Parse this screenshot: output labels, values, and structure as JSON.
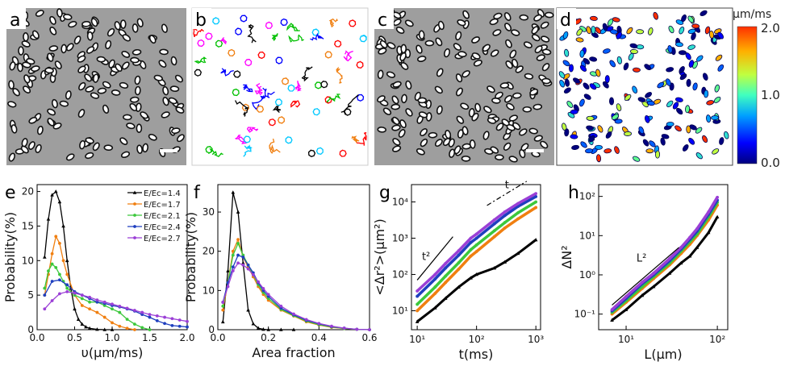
{
  "panel_labels": [
    "a",
    "b",
    "c",
    "d",
    "e",
    "f",
    "g",
    "h"
  ],
  "colorbar": {
    "unit": "μm/ms",
    "ticks": [
      "2.0",
      "1.0",
      "0.0"
    ],
    "range": [
      0,
      2
    ]
  },
  "series_colors": [
    "#000000",
    "#f07f10",
    "#3cc83c",
    "#1f3fbf",
    "#9b3fd6"
  ],
  "chart_data": [
    {
      "panel": "e",
      "type": "line",
      "xlabel": "υ(μm/ms)",
      "ylabel": "Probability(%)",
      "xlim": [
        0,
        2
      ],
      "ylim": [
        0,
        21
      ],
      "xticks": [
        "0.0",
        "0.5",
        "1.0",
        "1.5",
        "2.0"
      ],
      "yticks": [
        "0",
        "5",
        "10",
        "15",
        "20"
      ],
      "legend": "top-right",
      "series": [
        {
          "name": "E/Ec=1.4",
          "x": [
            0.1,
            0.15,
            0.2,
            0.25,
            0.3,
            0.35,
            0.4,
            0.45,
            0.5,
            0.55,
            0.6,
            0.65,
            0.7,
            0.8,
            0.9,
            1.0
          ],
          "values": [
            10.5,
            16,
            19.5,
            20,
            18.5,
            15,
            10,
            6,
            3,
            1.5,
            0.8,
            0.4,
            0.2,
            0.05,
            0,
            0
          ]
        },
        {
          "name": "E/Ec=1.7",
          "x": [
            0.1,
            0.15,
            0.2,
            0.25,
            0.3,
            0.35,
            0.4,
            0.5,
            0.6,
            0.7,
            0.8,
            0.9,
            1.0,
            1.1,
            1.2,
            1.3
          ],
          "values": [
            5,
            8,
            11,
            13.5,
            12.5,
            10,
            8,
            5,
            3.5,
            3,
            2.5,
            1.8,
            1,
            0.5,
            0.2,
            0
          ]
        },
        {
          "name": "E/Ec=2.1",
          "x": [
            0.1,
            0.15,
            0.2,
            0.25,
            0.3,
            0.35,
            0.4,
            0.5,
            0.6,
            0.7,
            0.8,
            0.9,
            1.0,
            1.1,
            1.2,
            1.3,
            1.4,
            1.5
          ],
          "values": [
            6,
            8.5,
            9.5,
            9,
            8,
            7,
            6,
            5,
            4.5,
            4,
            4,
            3.5,
            3,
            2.5,
            1.5,
            0.8,
            0.3,
            0
          ]
        },
        {
          "name": "E/Ec=2.4",
          "x": [
            0.1,
            0.2,
            0.3,
            0.4,
            0.5,
            0.6,
            0.7,
            0.8,
            0.9,
            1.0,
            1.1,
            1.2,
            1.3,
            1.4,
            1.5,
            1.6,
            1.7,
            1.8,
            1.9,
            2.0
          ],
          "values": [
            5,
            7,
            7.2,
            6.5,
            5.5,
            5,
            4.5,
            4,
            3.8,
            3.5,
            3.3,
            3,
            2.7,
            2.2,
            1.8,
            1.3,
            0.9,
            0.6,
            0.5,
            0.4
          ]
        },
        {
          "name": "E/Ec=2.7",
          "x": [
            0.1,
            0.2,
            0.3,
            0.4,
            0.5,
            0.6,
            0.7,
            0.8,
            0.9,
            1.0,
            1.1,
            1.2,
            1.3,
            1.4,
            1.5,
            1.6,
            1.7,
            1.8,
            1.9,
            2.0
          ],
          "values": [
            3,
            4.2,
            5.2,
            5.5,
            5.3,
            5,
            4.7,
            4.3,
            4,
            3.7,
            3.4,
            3.1,
            2.8,
            2.5,
            2.2,
            2,
            1.8,
            1.6,
            1.4,
            1.2
          ]
        }
      ]
    },
    {
      "panel": "f",
      "type": "line",
      "xlabel": "Area fraction",
      "ylabel": "Probability(%)",
      "xlim": [
        0,
        0.6
      ],
      "ylim": [
        0,
        37
      ],
      "xticks": [
        "0.0",
        "0.2",
        "0.4",
        "0.6"
      ],
      "yticks": [
        "0",
        "10",
        "20",
        "30"
      ],
      "series": [
        {
          "x": [
            0.02,
            0.04,
            0.06,
            0.08,
            0.1,
            0.12,
            0.14,
            0.16,
            0.18,
            0.2,
            0.25,
            0.3
          ],
          "values": [
            2,
            15,
            35,
            30,
            17,
            5,
            1.5,
            0.4,
            0.1,
            0,
            0,
            0
          ]
        },
        {
          "x": [
            0.02,
            0.04,
            0.06,
            0.08,
            0.1,
            0.12,
            0.14,
            0.16,
            0.18,
            0.2,
            0.25,
            0.3,
            0.35,
            0.4,
            0.45,
            0.5,
            0.55,
            0.6
          ],
          "values": [
            5,
            12,
            20,
            23,
            18.5,
            16,
            13.5,
            11,
            9,
            7.5,
            5,
            3.5,
            2,
            1.2,
            0.6,
            0.3,
            0.1,
            0
          ]
        },
        {
          "x": [
            0.02,
            0.04,
            0.06,
            0.08,
            0.1,
            0.12,
            0.14,
            0.16,
            0.18,
            0.2,
            0.25,
            0.3,
            0.35,
            0.4,
            0.45,
            0.5,
            0.55,
            0.6
          ],
          "values": [
            6,
            12,
            19,
            22,
            19,
            16.5,
            14,
            11.5,
            9.5,
            8,
            5.2,
            3.6,
            2.2,
            1.3,
            0.7,
            0.3,
            0.1,
            0
          ]
        },
        {
          "x": [
            0.02,
            0.04,
            0.06,
            0.08,
            0.1,
            0.12,
            0.14,
            0.16,
            0.18,
            0.2,
            0.25,
            0.3,
            0.35,
            0.4,
            0.45,
            0.5,
            0.55,
            0.6
          ],
          "values": [
            7,
            12,
            16,
            19,
            18.5,
            16.5,
            14.5,
            12,
            10,
            8.5,
            5.5,
            3.8,
            2.4,
            1.5,
            0.8,
            0.4,
            0.1,
            0
          ]
        },
        {
          "x": [
            0.02,
            0.04,
            0.06,
            0.08,
            0.1,
            0.12,
            0.14,
            0.16,
            0.18,
            0.2,
            0.25,
            0.3,
            0.35,
            0.4,
            0.45,
            0.5,
            0.55,
            0.6
          ],
          "values": [
            7,
            11,
            15,
            17,
            16.5,
            15.5,
            14,
            12.2,
            10.5,
            9,
            6,
            4,
            2.6,
            1.6,
            0.9,
            0.4,
            0.1,
            0
          ]
        }
      ]
    },
    {
      "panel": "g",
      "type": "line",
      "xlabel": "t(ms)",
      "ylabel": "<Δr²>(μm²)",
      "xscale": "log",
      "yscale": "log",
      "xlim": [
        8,
        1200
      ],
      "ylim": [
        3,
        30000
      ],
      "xticks": [
        "10¹",
        "10²",
        "10³"
      ],
      "yticks": [
        "10¹",
        "10²",
        "10³",
        "10⁴"
      ],
      "annotations": [
        "t²",
        "t"
      ],
      "series": [
        {
          "x": [
            10,
            20,
            30,
            50,
            80,
            100,
            200,
            300,
            500,
            1000
          ],
          "values": [
            5,
            12,
            22,
            45,
            80,
            100,
            150,
            220,
            380,
            900
          ]
        },
        {
          "x": [
            10,
            20,
            30,
            50,
            80,
            100,
            200,
            300,
            500,
            1000
          ],
          "values": [
            10,
            30,
            60,
            140,
            320,
            430,
            1100,
            1900,
            3400,
            7000
          ]
        },
        {
          "x": [
            10,
            20,
            30,
            50,
            80,
            100,
            200,
            300,
            500,
            1000
          ],
          "values": [
            15,
            45,
            90,
            210,
            480,
            650,
            1600,
            2700,
            5000,
            10000
          ]
        },
        {
          "x": [
            10,
            20,
            30,
            50,
            80,
            100,
            200,
            300,
            500,
            1000
          ],
          "values": [
            25,
            75,
            150,
            340,
            760,
            1000,
            2500,
            4200,
            7500,
            14000
          ]
        },
        {
          "x": [
            10,
            20,
            30,
            50,
            80,
            100,
            200,
            300,
            500,
            1000
          ],
          "values": [
            35,
            100,
            200,
            450,
            1000,
            1300,
            3200,
            5300,
            9000,
            17000
          ]
        }
      ]
    },
    {
      "panel": "h",
      "type": "line",
      "xlabel": "L(μm)",
      "ylabel": "ΔN²",
      "xscale": "log",
      "yscale": "log",
      "xlim": [
        5,
        130
      ],
      "ylim": [
        0.04,
        200
      ],
      "xticks": [
        "10¹",
        "10²"
      ],
      "yticks": [
        "10⁻¹",
        "10⁰",
        "10¹",
        "10²"
      ],
      "annotations": [
        "L²"
      ],
      "series": [
        {
          "x": [
            7,
            10,
            15,
            20,
            30,
            40,
            50,
            60,
            80,
            100
          ],
          "values": [
            0.07,
            0.13,
            0.3,
            0.5,
            1.1,
            2,
            3,
            5,
            12,
            30
          ]
        },
        {
          "x": [
            7,
            10,
            15,
            20,
            30,
            40,
            50,
            60,
            80,
            100
          ],
          "values": [
            0.1,
            0.2,
            0.45,
            0.8,
            1.8,
            3.5,
            6,
            10,
            25,
            60
          ]
        },
        {
          "x": [
            7,
            10,
            15,
            20,
            30,
            40,
            50,
            60,
            80,
            100
          ],
          "values": [
            0.11,
            0.22,
            0.5,
            0.9,
            2,
            4,
            7,
            11,
            30,
            70
          ]
        },
        {
          "x": [
            7,
            10,
            15,
            20,
            30,
            40,
            50,
            60,
            80,
            100
          ],
          "values": [
            0.12,
            0.25,
            0.6,
            1,
            2.3,
            4.5,
            8,
            13,
            35,
            80
          ]
        },
        {
          "x": [
            7,
            10,
            15,
            20,
            30,
            40,
            50,
            60,
            80,
            100
          ],
          "values": [
            0.13,
            0.28,
            0.65,
            1.1,
            2.6,
            5,
            9,
            15,
            40,
            95
          ]
        }
      ]
    }
  ]
}
